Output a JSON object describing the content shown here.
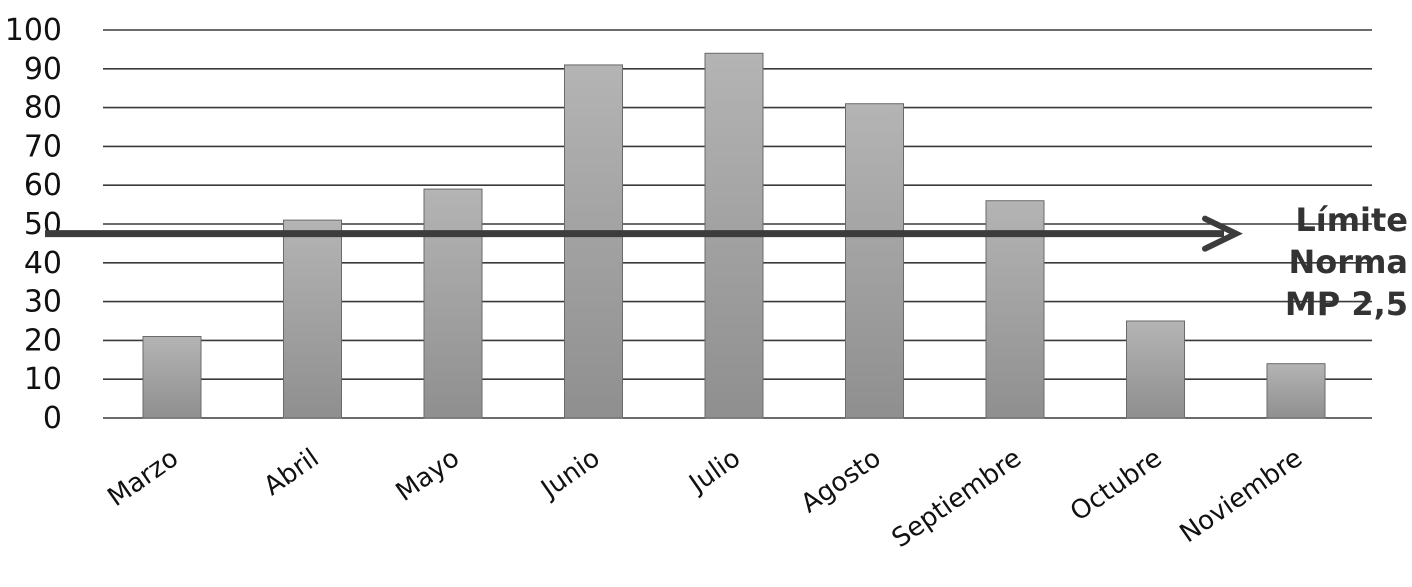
{
  "chart_data": {
    "type": "bar",
    "categories": [
      "Marzo",
      "Abril",
      "Mayo",
      "Junio",
      "Julio",
      "Agosto",
      "Septiembre",
      "Octubre",
      "Noviembre"
    ],
    "values": [
      21,
      51,
      59,
      91,
      94,
      81,
      56,
      25,
      14
    ],
    "title": "",
    "xlabel": "",
    "ylabel": "",
    "ylim": [
      0,
      100
    ],
    "yticks": [
      0,
      10,
      20,
      30,
      40,
      50,
      60,
      70,
      80,
      90,
      100
    ],
    "grid": true,
    "limit_line": {
      "value": 47,
      "label_lines": [
        "Límite",
        "Norma",
        "MP 2,5"
      ]
    },
    "colors": {
      "bar": "#8f8f8f",
      "bar_light": "#b4b4b4",
      "limit_arrow": "#3c3c3c",
      "grid": "#3a3a3a"
    }
  }
}
